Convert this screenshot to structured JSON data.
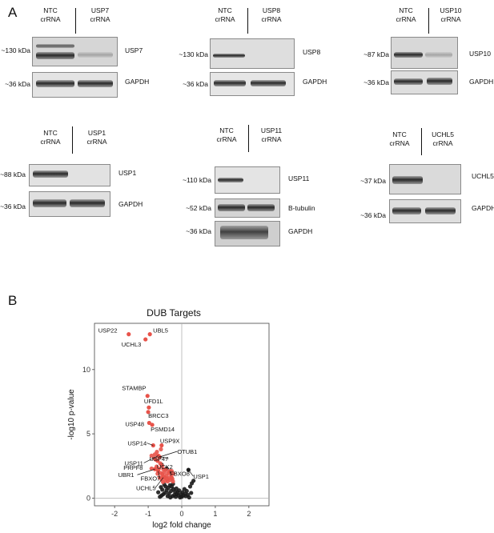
{
  "panel_a": {
    "letter": "A",
    "blots": [
      {
        "control": {
          "line1": "NTC",
          "line2": "crRNA"
        },
        "knockout": {
          "line1": "USP7",
          "line2": "crRNA"
        },
        "rows": [
          {
            "kda": "~130 kDa",
            "label": "USP7"
          },
          {
            "kda": "~36 kDa",
            "label": "GAPDH"
          }
        ]
      },
      {
        "control": {
          "line1": "NTC",
          "line2": "crRNA"
        },
        "knockout": {
          "line1": "USP8",
          "line2": "crRNA"
        },
        "rows": [
          {
            "kda": "~130 kDa",
            "label": "USP8"
          },
          {
            "kda": "~36 kDa",
            "label": "GAPDH"
          }
        ]
      },
      {
        "control": {
          "line1": "NTC",
          "line2": "crRNA"
        },
        "knockout": {
          "line1": "USP10",
          "line2": "crRNA"
        },
        "rows": [
          {
            "kda": "~87 kDa",
            "label": "USP10"
          },
          {
            "kda": "~36 kDa",
            "label": "GAPDH"
          }
        ]
      },
      {
        "control": {
          "line1": "NTC",
          "line2": "crRNA"
        },
        "knockout": {
          "line1": "USP1",
          "line2": "crRNA"
        },
        "rows": [
          {
            "kda": "~88 kDa",
            "label": "USP1"
          },
          {
            "kda": "~36 kDa",
            "label": "GAPDH"
          }
        ]
      },
      {
        "control": {
          "line1": "NTC",
          "line2": "crRNA"
        },
        "knockout": {
          "line1": "USP11",
          "line2": "crRNA"
        },
        "rows": [
          {
            "kda": "~110 kDa",
            "label": "USP11"
          },
          {
            "kda": "~52 kDa",
            "label": "B-tubulin"
          },
          {
            "kda": "~36 kDa",
            "label": "GAPDH"
          }
        ]
      },
      {
        "control": {
          "line1": "NTC",
          "line2": "crRNA"
        },
        "knockout": {
          "line1": "UCHL5",
          "line2": "crRNA"
        },
        "rows": [
          {
            "kda": "~37 kDa",
            "label": "UCHL5"
          },
          {
            "kda": "~36 kDa",
            "label": "GAPDH"
          }
        ]
      }
    ]
  },
  "panel_b": {
    "letter": "B",
    "chart_data": {
      "type": "scatter",
      "title": "DUB Targets",
      "xlabel": "log2 fold change",
      "ylabel": "-log10 p-value",
      "xlim": [
        -2.6,
        2.6
      ],
      "ylim": [
        -0.6,
        13.6
      ],
      "xticks": [
        -2,
        -1,
        0,
        1,
        2
      ],
      "yticks": [
        0,
        5,
        10
      ],
      "reference_lines": {
        "x": 0,
        "y": 0
      },
      "colors": {
        "significant": "#e8534a",
        "not_significant": "#1a1a1a"
      },
      "labeled_points": [
        {
          "name": "USP22",
          "x": -1.58,
          "y": 12.75
        },
        {
          "name": "UBL5",
          "x": -0.95,
          "y": 12.75
        },
        {
          "name": "UCHL3",
          "x": -1.08,
          "y": 12.35
        },
        {
          "name": "STAMBP",
          "x": -1.02,
          "y": 7.95
        },
        {
          "name": "UFD1L",
          "x": -0.98,
          "y": 7.05
        },
        {
          "name": "BRCC3",
          "x": -1.0,
          "y": 6.7
        },
        {
          "name": "USP48",
          "x": -0.97,
          "y": 5.85
        },
        {
          "name": "PSMD14",
          "x": -0.88,
          "y": 5.7
        },
        {
          "name": "USP14",
          "x": -0.85,
          "y": 4.1
        },
        {
          "name": "USP9X",
          "x": -0.6,
          "y": 4.1
        },
        {
          "name": "USP11",
          "x": -0.7,
          "y": 3.3
        },
        {
          "name": "USP47",
          "x": -0.68,
          "y": 3.25
        },
        {
          "name": "OTUB1",
          "x": -0.66,
          "y": 3.2
        },
        {
          "name": "PRPF8",
          "x": -0.78,
          "y": 3.0
        },
        {
          "name": "UCK2",
          "x": -0.72,
          "y": 2.9
        },
        {
          "name": "UBR1",
          "x": -0.8,
          "y": 2.25
        },
        {
          "name": "FBXO7",
          "x": -0.7,
          "y": 2.1
        },
        {
          "name": "FBXO8",
          "x": -0.35,
          "y": 2.1
        },
        {
          "name": "UCHL5",
          "x": -0.55,
          "y": 1.6
        },
        {
          "name": "USP1",
          "x": 0.2,
          "y": 2.2
        }
      ],
      "significant_points": [
        [
          -0.9,
          2.3
        ],
        [
          -0.75,
          2.45
        ],
        [
          -0.82,
          3.1
        ],
        [
          -0.62,
          1.95
        ],
        [
          -0.58,
          1.85
        ],
        [
          -0.55,
          1.7
        ],
        [
          -0.5,
          1.6
        ],
        [
          -0.45,
          1.75
        ],
        [
          -0.4,
          1.95
        ],
        [
          -0.38,
          1.55
        ],
        [
          -0.35,
          1.4
        ],
        [
          -0.32,
          1.8
        ],
        [
          -0.3,
          1.6
        ],
        [
          -0.28,
          1.5
        ],
        [
          -0.25,
          1.9
        ],
        [
          -0.6,
          1.45
        ],
        [
          -0.48,
          1.35
        ],
        [
          -0.42,
          1.3
        ],
        [
          -0.66,
          1.6
        ],
        [
          -0.52,
          2.0
        ],
        [
          -0.68,
          2.3
        ],
        [
          -0.47,
          2.2
        ],
        [
          -0.36,
          2.05
        ],
        [
          -0.58,
          2.5
        ],
        [
          -0.64,
          2.7
        ],
        [
          -0.8,
          3.4
        ],
        [
          -0.74,
          3.6
        ],
        [
          -0.62,
          3.8
        ],
        [
          -0.9,
          3.3
        ],
        [
          -0.56,
          1.25
        ],
        [
          -0.72,
          1.9
        ],
        [
          -0.44,
          1.5
        ],
        [
          -0.3,
          2.1
        ],
        [
          -0.26,
          1.3
        ],
        [
          -0.55,
          2.25
        ]
      ],
      "non_significant_points": [
        [
          0.3,
          1.15
        ],
        [
          0.25,
          0.9
        ],
        [
          0.15,
          0.55
        ],
        [
          0.1,
          0.35
        ],
        [
          0.05,
          0.2
        ],
        [
          0.0,
          0.1
        ],
        [
          -0.05,
          0.05
        ],
        [
          -0.1,
          0.2
        ],
        [
          -0.15,
          0.3
        ],
        [
          -0.2,
          0.5
        ],
        [
          -0.25,
          0.7
        ],
        [
          -0.3,
          0.9
        ],
        [
          -0.35,
          1.0
        ],
        [
          -0.4,
          0.8
        ],
        [
          -0.45,
          0.6
        ],
        [
          -0.5,
          0.4
        ],
        [
          -0.55,
          0.3
        ],
        [
          -0.6,
          0.2
        ],
        [
          -0.65,
          0.1
        ],
        [
          -0.18,
          0.1
        ],
        [
          -0.22,
          0.25
        ],
        [
          -0.28,
          0.15
        ],
        [
          -0.12,
          0.45
        ],
        [
          -0.08,
          0.6
        ],
        [
          0.02,
          0.45
        ],
        [
          0.08,
          0.7
        ],
        [
          0.18,
          0.25
        ],
        [
          0.22,
          0.05
        ],
        [
          -0.38,
          0.35
        ],
        [
          -0.42,
          0.15
        ],
        [
          -0.32,
          0.55
        ],
        [
          -0.48,
          0.9
        ],
        [
          -0.52,
          1.05
        ],
        [
          -0.58,
          0.65
        ],
        [
          0.12,
          0.15
        ],
        [
          -0.02,
          0.3
        ],
        [
          0.28,
          0.4
        ],
        [
          -0.7,
          0.45
        ],
        [
          -0.62,
          0.85
        ],
        [
          -0.34,
          0.05
        ],
        [
          -0.6,
          2.6
        ],
        [
          -0.45,
          2.3
        ],
        [
          -0.26,
          1.1
        ],
        [
          0.35,
          1.35
        ],
        [
          -0.16,
          0.75
        ]
      ]
    }
  }
}
